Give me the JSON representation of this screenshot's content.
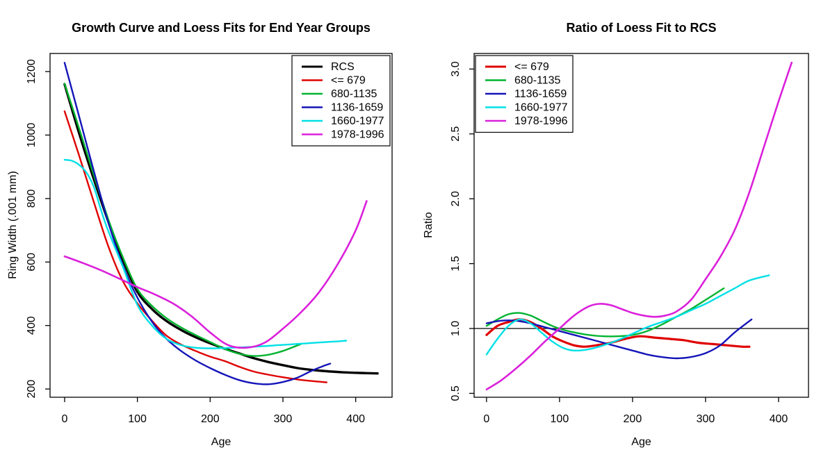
{
  "figure": {
    "background": "#ffffff"
  },
  "chart_data": [
    {
      "type": "line",
      "title": "Growth Curve and Loess Fits for End Year Groups",
      "xlabel": "Age",
      "ylabel": "Ring Width (.001 mm)",
      "xlim": [
        -20,
        450
      ],
      "ylim": [
        174,
        1257
      ],
      "grid": false,
      "xticks": {
        "values": [
          0,
          100,
          200,
          300,
          400
        ],
        "labels": [
          "0",
          "100",
          "200",
          "300",
          "400"
        ]
      },
      "yticks": {
        "values": [
          200,
          400,
          600,
          800,
          1000,
          1200
        ],
        "labels": [
          "200",
          "400",
          "600",
          "800",
          "1000",
          "1200"
        ]
      },
      "legend": {
        "position": "topright"
      },
      "series": [
        {
          "id": "rcs",
          "label": "RCS",
          "color": "#000000",
          "width": 3.4,
          "x": [
            0,
            20,
            40,
            60,
            80,
            100,
            120,
            140,
            160,
            180,
            200,
            220,
            240,
            260,
            280,
            300,
            320,
            340,
            360,
            380,
            400,
            415,
            430
          ],
          "y": [
            1160,
            1005,
            862,
            728,
            607,
            506,
            452,
            414,
            386,
            363,
            344,
            327,
            312,
            297,
            285,
            275,
            266,
            260,
            256,
            253,
            251,
            250,
            249
          ]
        },
        {
          "id": "le-679",
          "label": "<= 679",
          "color": "#E00000",
          "width": 2.4,
          "x": [
            0,
            20,
            40,
            60,
            80,
            100,
            120,
            140,
            160,
            180,
            200,
            220,
            240,
            260,
            280,
            300,
            320,
            340,
            360
          ],
          "y": [
            1075,
            935,
            790,
            650,
            540,
            470,
            415,
            368,
            340,
            320,
            302,
            288,
            270,
            255,
            245,
            237,
            230,
            225,
            221
          ]
        },
        {
          "id": "680-1135",
          "label": "680-1135",
          "color": "#00B430",
          "width": 2.4,
          "x": [
            0,
            20,
            40,
            60,
            80,
            100,
            120,
            140,
            160,
            180,
            200,
            220,
            240,
            260,
            280,
            300,
            325
          ],
          "y": [
            1162,
            1020,
            875,
            735,
            615,
            515,
            462,
            423,
            394,
            370,
            348,
            326,
            311,
            304,
            308,
            320,
            342
          ]
        },
        {
          "id": "1136-1659",
          "label": "1136-1659",
          "color": "#1414B8",
          "width": 2.4,
          "x": [
            0,
            20,
            40,
            60,
            80,
            100,
            120,
            140,
            160,
            180,
            200,
            220,
            240,
            260,
            280,
            300,
            320,
            340,
            355,
            365
          ],
          "y": [
            1228,
            1058,
            888,
            725,
            590,
            488,
            412,
            358,
            320,
            290,
            266,
            245,
            228,
            218,
            215,
            222,
            236,
            258,
            272,
            280
          ]
        },
        {
          "id": "1660-1977",
          "label": "1660-1977",
          "color": "#00E0E6",
          "width": 2.4,
          "x": [
            0,
            10,
            20,
            30,
            40,
            50,
            60,
            80,
            100,
            120,
            140,
            160,
            180,
            200,
            220,
            240,
            260,
            280,
            300,
            320,
            340,
            360,
            375,
            387
          ],
          "y": [
            922,
            919,
            906,
            882,
            838,
            764,
            698,
            585,
            465,
            400,
            358,
            338,
            330,
            328,
            329,
            331,
            333,
            336,
            339,
            342,
            345,
            348,
            350,
            352
          ]
        },
        {
          "id": "1978-1996",
          "label": "1978-1996",
          "color": "#DB20DB",
          "width": 2.6,
          "x": [
            0,
            25,
            50,
            75,
            100,
            125,
            150,
            175,
            200,
            225,
            250,
            275,
            300,
            325,
            350,
            375,
            400,
            415
          ],
          "y": [
            618,
            597,
            574,
            548,
            521,
            497,
            468,
            428,
            378,
            338,
            330,
            346,
            390,
            442,
            506,
            592,
            700,
            792
          ]
        }
      ]
    },
    {
      "type": "line",
      "title": "Ratio of Loess Fit to RCS",
      "xlabel": "Age",
      "ylabel": "Ratio",
      "xlim": [
        -17,
        441
      ],
      "ylim": [
        0.47,
        3.12
      ],
      "grid": false,
      "xticks": {
        "values": [
          0,
          100,
          200,
          300,
          400
        ],
        "labels": [
          "0",
          "100",
          "200",
          "300",
          "400"
        ]
      },
      "yticks": {
        "values": [
          0.5,
          1.0,
          1.5,
          2.0,
          2.5,
          3.0
        ],
        "labels": [
          "0.5",
          "1.0",
          "1.5",
          "2.0",
          "2.5",
          "3.0"
        ]
      },
      "refline": {
        "y": 1.0,
        "color": "#000000"
      },
      "legend": {
        "position": "topleft"
      },
      "series": [
        {
          "id": "le-679",
          "label": "<= 679",
          "color": "#E00000",
          "width": 3.2,
          "x": [
            0,
            15,
            30,
            45,
            60,
            75,
            90,
            105,
            120,
            135,
            150,
            170,
            190,
            210,
            230,
            250,
            270,
            290,
            310,
            330,
            350,
            360
          ],
          "y": [
            0.95,
            1.02,
            1.05,
            1.07,
            1.05,
            1.0,
            0.94,
            0.9,
            0.87,
            0.86,
            0.87,
            0.89,
            0.92,
            0.94,
            0.93,
            0.92,
            0.91,
            0.89,
            0.88,
            0.87,
            0.86,
            0.86
          ]
        },
        {
          "id": "680-1135",
          "label": "680-1135",
          "color": "#00B430",
          "width": 2.4,
          "x": [
            0,
            15,
            30,
            45,
            60,
            75,
            90,
            105,
            120,
            140,
            160,
            180,
            200,
            220,
            240,
            260,
            280,
            300,
            325
          ],
          "y": [
            1.02,
            1.07,
            1.11,
            1.12,
            1.1,
            1.06,
            1.02,
            0.99,
            0.97,
            0.95,
            0.94,
            0.94,
            0.95,
            0.98,
            1.03,
            1.09,
            1.15,
            1.22,
            1.31
          ]
        },
        {
          "id": "1136-1659",
          "label": "1136-1659",
          "color": "#1414B8",
          "width": 2.4,
          "x": [
            0,
            20,
            40,
            60,
            80,
            100,
            120,
            140,
            160,
            180,
            200,
            220,
            240,
            260,
            280,
            300,
            320,
            340,
            363
          ],
          "y": [
            1.04,
            1.06,
            1.06,
            1.04,
            1.01,
            0.98,
            0.95,
            0.92,
            0.89,
            0.86,
            0.83,
            0.8,
            0.78,
            0.77,
            0.78,
            0.81,
            0.87,
            0.97,
            1.07
          ]
        },
        {
          "id": "1660-1977",
          "label": "1660-1977",
          "color": "#00E0E6",
          "width": 2.4,
          "x": [
            0,
            15,
            30,
            45,
            60,
            75,
            90,
            105,
            120,
            140,
            160,
            180,
            200,
            220,
            240,
            260,
            280,
            300,
            320,
            340,
            360,
            387
          ],
          "y": [
            0.8,
            0.92,
            1.02,
            1.07,
            1.04,
            0.97,
            0.9,
            0.85,
            0.83,
            0.84,
            0.87,
            0.91,
            0.96,
            1.01,
            1.05,
            1.09,
            1.14,
            1.19,
            1.25,
            1.31,
            1.37,
            1.41
          ]
        },
        {
          "id": "1978-1996",
          "label": "1978-1996",
          "color": "#DB20DB",
          "width": 2.6,
          "x": [
            0,
            20,
            40,
            60,
            80,
            100,
            120,
            140,
            155,
            170,
            185,
            200,
            215,
            230,
            245,
            260,
            280,
            300,
            320,
            340,
            360,
            380,
            400,
            418
          ],
          "y": [
            0.53,
            0.6,
            0.69,
            0.79,
            0.9,
            1.0,
            1.1,
            1.17,
            1.19,
            1.18,
            1.15,
            1.12,
            1.1,
            1.09,
            1.1,
            1.13,
            1.22,
            1.38,
            1.55,
            1.76,
            2.05,
            2.4,
            2.75,
            3.05
          ]
        }
      ]
    }
  ]
}
